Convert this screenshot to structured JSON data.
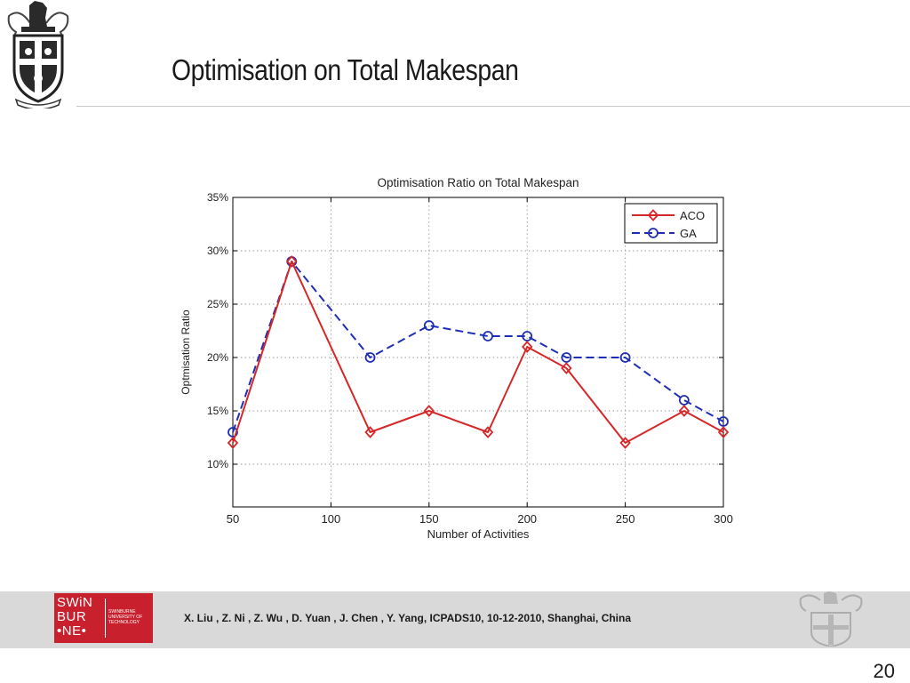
{
  "slide": {
    "title": "Optimisation on Total Makespan",
    "citation": "X. Liu , Z. Ni , Z. Wu , D. Yuan , J. Chen , Y. Yang, ICPADS10, 10-12-2010, Shanghai, China",
    "page_number": "20"
  },
  "footer_logo": {
    "words": [
      "SWiN",
      "BUR",
      "•NE•"
    ],
    "university": "SWINBURNE UNIVERSITY OF TECHNOLOGY",
    "color": "#c8202d"
  },
  "crest": {
    "motto": ""
  },
  "chart_data": {
    "type": "line",
    "title": "Optimisation Ratio on Total Makespan",
    "xlabel": "Number of Activities",
    "ylabel": "Optmisation Ratio",
    "xlim": [
      50,
      300
    ],
    "ylim": [
      6,
      35
    ],
    "xticks": [
      50,
      100,
      150,
      200,
      250,
      300
    ],
    "yticks": [
      10,
      15,
      20,
      25,
      30,
      35
    ],
    "ytick_labels": [
      "10%",
      "15%",
      "20%",
      "25%",
      "30%",
      "35%"
    ],
    "grid": true,
    "legend_position": "top-right",
    "x": [
      50,
      80,
      120,
      150,
      180,
      200,
      220,
      250,
      280,
      300
    ],
    "series": [
      {
        "name": "ACO",
        "values": [
          12,
          29,
          13,
          15,
          13,
          21,
          19,
          12,
          15,
          13
        ],
        "color": "#d62728",
        "marker": "diamond",
        "dash": "solid"
      },
      {
        "name": "GA",
        "values": [
          13,
          29,
          20,
          23,
          22,
          22,
          20,
          20,
          16,
          14
        ],
        "color": "#1f2fb4",
        "marker": "circle",
        "dash": "dashed"
      }
    ]
  }
}
